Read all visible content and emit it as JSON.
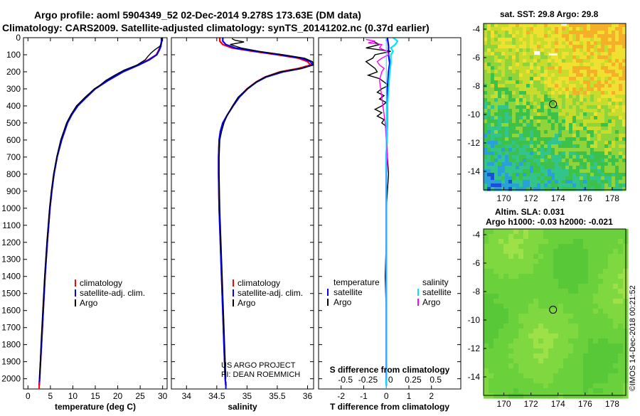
{
  "header": {
    "title_line1": "Argo profile: aoml 5904349_52 02-Dec-2014 9.278S 173.63E (DM data)",
    "title_line2": "Climatology: CARS2009. Satellite-adjusted climatology: synTS_20141202.nc (0.37d earlier)"
  },
  "colors": {
    "climatology": "#ff0000",
    "satellite": "#0000ff",
    "argo": "#000000",
    "t_satellite": "#0000ff",
    "s_satellite": "#00e5ff",
    "s_argo": "#ff00ff"
  },
  "chart_data": [
    {
      "type": "line",
      "name": "temperature-profile",
      "xlabel": "temperature (deg C)",
      "ylabel": "depth",
      "xlim": [
        -1,
        31
      ],
      "ylim": [
        2060,
        0
      ],
      "xticks": [
        "0",
        "5",
        "10",
        "15",
        "20",
        "25",
        "30"
      ],
      "xtick_values": [
        0,
        5,
        10,
        15,
        20,
        25,
        30
      ],
      "yticks": [
        "0",
        "100",
        "200",
        "300",
        "400",
        "500",
        "600",
        "700",
        "800",
        "900",
        "1000",
        "1100",
        "1200",
        "1300",
        "1400",
        "1500",
        "1600",
        "1700",
        "1800",
        "1900",
        "2000"
      ],
      "ytick_values": [
        0,
        100,
        200,
        300,
        400,
        500,
        600,
        700,
        800,
        900,
        1000,
        1100,
        1200,
        1300,
        1400,
        1500,
        1600,
        1700,
        1800,
        1900,
        2000
      ],
      "legend": [
        "climatology",
        "satellite-adj. clim.",
        "Argo"
      ],
      "series": [
        {
          "name": "climatology",
          "depth": [
            0,
            10,
            30,
            50,
            70,
            100,
            130,
            160,
            200,
            250,
            300,
            350,
            400,
            450,
            500,
            600,
            700,
            800,
            900,
            1000,
            1200,
            1400,
            1600,
            1800,
            2000,
            2040
          ],
          "values": [
            29.8,
            29.8,
            29.7,
            29.5,
            29.2,
            28.6,
            26.8,
            24.5,
            21.0,
            17.8,
            14.9,
            12.9,
            11.0,
            9.7,
            8.7,
            7.4,
            6.5,
            5.8,
            5.3,
            4.9,
            4.3,
            3.8,
            3.4,
            3.0,
            2.6,
            2.5
          ]
        },
        {
          "name": "satellite-adj. clim.",
          "depth": [
            0,
            10,
            30,
            50,
            70,
            100,
            130,
            160,
            200,
            250,
            300,
            350,
            400,
            450,
            500,
            600,
            700,
            800,
            900,
            1000,
            1200,
            1400,
            1600,
            1800,
            2000,
            2040
          ],
          "values": [
            29.8,
            29.8,
            29.7,
            29.6,
            29.3,
            28.7,
            27.0,
            24.7,
            21.2,
            17.9,
            15.0,
            13.0,
            11.1,
            9.8,
            8.8,
            7.5,
            6.5,
            5.8,
            5.3,
            4.9,
            4.3,
            3.8,
            3.4,
            3.0,
            2.6,
            2.5
          ]
        },
        {
          "name": "Argo",
          "depth": [
            5,
            15,
            30,
            50,
            70,
            90,
            110,
            130,
            160,
            190,
            220,
            250,
            280,
            300,
            350,
            400,
            450,
            500,
            600,
            700,
            800,
            900,
            1000,
            1200,
            1400,
            1600,
            1800,
            2000
          ],
          "values": [
            29.6,
            29.9,
            29.8,
            29.4,
            28.3,
            27.4,
            26.7,
            26.1,
            24.3,
            21.4,
            19.3,
            17.4,
            16.0,
            14.8,
            12.7,
            10.8,
            9.6,
            8.6,
            7.3,
            6.4,
            5.7,
            5.2,
            4.8,
            4.2,
            3.7,
            3.3,
            2.9,
            2.6
          ]
        }
      ]
    },
    {
      "type": "line",
      "name": "salinity-profile",
      "xlabel": "salinity",
      "xlim": [
        33.75,
        36.1
      ],
      "ylim": [
        2060,
        0
      ],
      "xticks": [
        "34",
        "34.5",
        "35",
        "35.5",
        "36"
      ],
      "xtick_values": [
        34,
        34.5,
        35,
        35.5,
        36
      ],
      "legend": [
        "climatology",
        "satellite-adj. clim.",
        "Argo"
      ],
      "series": [
        {
          "name": "climatology",
          "depth": [
            0,
            20,
            40,
            60,
            80,
            100,
            120,
            140,
            160,
            180,
            200,
            230,
            260,
            300,
            350,
            400,
            450,
            500,
            550,
            600,
            700,
            800,
            1000,
            1200,
            1400,
            1600,
            1800,
            2000,
            2040
          ],
          "values": [
            34.55,
            34.55,
            34.6,
            34.75,
            35.1,
            35.5,
            35.85,
            36.0,
            36.05,
            35.85,
            35.55,
            35.3,
            35.15,
            35.0,
            34.87,
            34.77,
            34.68,
            34.6,
            34.56,
            34.54,
            34.53,
            34.53,
            34.54,
            34.56,
            34.58,
            34.6,
            34.62,
            34.64,
            34.65
          ]
        },
        {
          "name": "satellite-adj. clim.",
          "depth": [
            0,
            20,
            40,
            60,
            80,
            100,
            120,
            140,
            160,
            180,
            200,
            230,
            260,
            300,
            350,
            400,
            450,
            500,
            550,
            600,
            700,
            800,
            1000,
            1200,
            1400,
            1600,
            1800,
            2000,
            2040
          ],
          "values": [
            34.6,
            34.6,
            34.65,
            34.8,
            35.15,
            35.55,
            35.9,
            36.05,
            36.08,
            35.9,
            35.6,
            35.32,
            35.16,
            35.01,
            34.87,
            34.77,
            34.68,
            34.6,
            34.56,
            34.54,
            34.53,
            34.53,
            34.54,
            34.56,
            34.58,
            34.6,
            34.62,
            34.64,
            34.65
          ]
        },
        {
          "name": "Argo",
          "depth": [
            5,
            15,
            25,
            40,
            60,
            80,
            100,
            120,
            140,
            160,
            180,
            200,
            230,
            260,
            300,
            350,
            400,
            450,
            500,
            550,
            600,
            700,
            800,
            1000,
            1200,
            1400,
            1600,
            1800,
            2000
          ],
          "values": [
            34.75,
            34.8,
            34.95,
            34.72,
            34.9,
            35.2,
            35.6,
            35.95,
            36.08,
            36.1,
            35.9,
            35.55,
            35.3,
            35.15,
            35.0,
            34.85,
            34.76,
            34.68,
            34.62,
            34.58,
            34.55,
            34.54,
            34.54,
            34.55,
            34.57,
            34.59,
            34.61,
            34.63,
            34.65
          ]
        }
      ],
      "annotations": [
        "US ARGO PROJECT",
        "PI: DEAN ROEMMICH"
      ]
    },
    {
      "type": "line",
      "name": "difference-profile",
      "xlabel": "T difference from climatology",
      "xlim": [
        -3,
        3.3
      ],
      "ylim": [
        2060,
        0
      ],
      "xticks": [
        "-2",
        "-1",
        "0",
        "1",
        "2"
      ],
      "xtick_values": [
        -2,
        -1,
        0,
        1,
        2
      ],
      "s_axis_label": "S difference from climatology",
      "s_xticks": [
        "-0.5",
        "-0.25",
        "0",
        "0.25",
        "0.5"
      ],
      "s_xtick_values": [
        -2,
        -1,
        0,
        1,
        2
      ],
      "legend_left_title": "temperature",
      "legend_left": [
        "satellite",
        "Argo"
      ],
      "legend_right_title": "salinity",
      "legend_right": [
        "satellite",
        "Argo"
      ],
      "series": [
        {
          "name": "temperature satellite",
          "depth": [
            0,
            50,
            100,
            150,
            200,
            300,
            400,
            500,
            700,
            1000,
            1500,
            2000,
            2040
          ],
          "values": [
            0.05,
            0.1,
            0.1,
            0.15,
            0.1,
            0.05,
            0.05,
            0.05,
            0.0,
            0.0,
            0.0,
            0.0,
            0.0
          ]
        },
        {
          "name": "temperature Argo",
          "depth": [
            20,
            40,
            60,
            80,
            100,
            120,
            140,
            160,
            180,
            200,
            220,
            240,
            260,
            280,
            300,
            320,
            340,
            360,
            380,
            400,
            420,
            440,
            460,
            480,
            500,
            520,
            560,
            600,
            700,
            800,
            900,
            1000,
            1200,
            1400,
            1600,
            1800,
            2000
          ],
          "values": [
            -0.6,
            -0.3,
            -0.9,
            0.2,
            -0.5,
            -0.6,
            -0.9,
            -0.7,
            -0.5,
            -0.4,
            -0.8,
            -0.3,
            -0.1,
            0.1,
            -0.2,
            -0.4,
            -0.1,
            -0.3,
            0.0,
            -0.2,
            -0.5,
            -0.2,
            -0.4,
            -0.1,
            -0.2,
            0.0,
            0.05,
            0.0,
            0.05,
            0.1,
            0.05,
            0.0,
            0.0,
            -0.05,
            0.0,
            0.0,
            0.0
          ]
        },
        {
          "name": "salinity satellite",
          "depth": [
            0,
            20,
            40,
            60,
            80,
            100,
            150,
            200,
            300,
            400,
            500,
            700,
            1000,
            1500,
            2000,
            2040
          ],
          "values": [
            0.3,
            0.5,
            0.4,
            0.2,
            0.3,
            0.2,
            0.2,
            0.15,
            0.1,
            0.05,
            0.05,
            0.0,
            0.0,
            0.0,
            0.0,
            0.0
          ]
        },
        {
          "name": "salinity Argo",
          "depth": [
            10,
            20,
            30,
            40,
            60,
            80,
            100,
            120,
            140,
            160,
            180,
            200,
            250,
            300,
            350,
            400,
            450,
            500,
            600,
            700,
            800,
            1000,
            1200,
            1400,
            1600,
            1800,
            2000
          ],
          "values": [
            -0.9,
            -0.5,
            -0.8,
            -0.2,
            -0.3,
            0.05,
            0.1,
            -0.2,
            -0.4,
            -0.3,
            -0.1,
            -0.2,
            -0.3,
            -0.25,
            -0.2,
            -0.15,
            -0.1,
            -0.05,
            0.0,
            0.05,
            0.0,
            0.0,
            0.0,
            0.0,
            0.0,
            0.0,
            0.0
          ]
        }
      ]
    },
    {
      "type": "heatmap",
      "name": "sst-map",
      "title": "sat. SST: 29.8 Argo: 29.8",
      "xlim": [
        168.5,
        179
      ],
      "ylim": [
        -15.3,
        -3.6
      ],
      "xticks": [
        "170",
        "172",
        "174",
        "176",
        "178"
      ],
      "xtick_values": [
        170,
        172,
        174,
        176,
        178
      ],
      "yticks": [
        "-4",
        "-6",
        "-8",
        "-10",
        "-12",
        "-14"
      ],
      "ytick_values": [
        -4,
        -6,
        -8,
        -10,
        -12,
        -14
      ],
      "marker": {
        "lon": 173.63,
        "lat": -9.278
      },
      "colormap": [
        "#1a4fd6",
        "#2aa0d8",
        "#32c48a",
        "#3cc24a",
        "#8fd43a",
        "#c8dc2e",
        "#f0e030",
        "#f5b02a"
      ]
    },
    {
      "type": "heatmap",
      "name": "sla-map",
      "title_line1": "Altim. SLA: 0.031",
      "title_line2": "Argo h1000: -0.03 h2000: -0.021",
      "xlim": [
        168.5,
        179
      ],
      "ylim": [
        -15.3,
        -3.6
      ],
      "xticks": [
        "170",
        "172",
        "174",
        "176",
        "178"
      ],
      "xtick_values": [
        170,
        172,
        174,
        176,
        178
      ],
      "yticks": [
        "-4",
        "-6",
        "-8",
        "-10",
        "-12",
        "-14"
      ],
      "ytick_values": [
        -4,
        -6,
        -8,
        -10,
        -12,
        -14
      ],
      "marker": {
        "lon": 173.63,
        "lat": -9.278
      },
      "colormap": [
        "#58c838",
        "#6ad03c",
        "#80d840",
        "#9ee048"
      ]
    }
  ],
  "footer": {
    "imos_stamp": "©IMOS 14-Dec-2018 00:21:52"
  }
}
